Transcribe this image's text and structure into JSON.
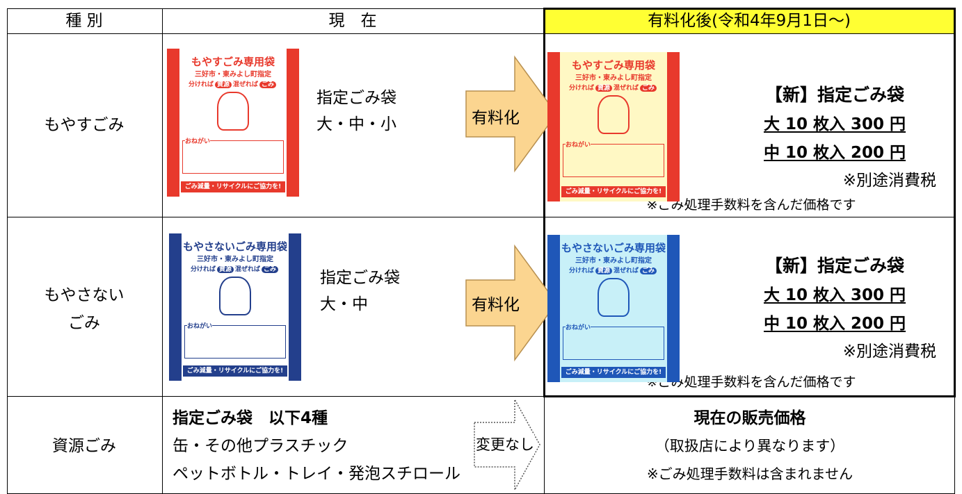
{
  "header": [
    "種 別",
    "現　在",
    "有料化後(令和4年9月1日～)"
  ],
  "rows": [
    {
      "category": [
        "もやすごみ"
      ],
      "current": {
        "bag": {
          "title": "もやすごみ専用袋",
          "subtitle": "三好市・東みよし町指定",
          "slogan": [
            "分ければ",
            "資源",
            "混ぜれば",
            "ごみ"
          ],
          "note": "おねがい",
          "footer": "ごみ減量・リサイクルにご協力を!"
        },
        "lines": [
          "指定ごみ袋",
          "大・中・小"
        ]
      },
      "arrow": "有料化",
      "after": {
        "bag": {
          "title": "もやすごみ専用袋",
          "subtitle": "三好市・東みよし町指定",
          "slogan": [
            "分ければ",
            "資源",
            "混ぜれば",
            "ごみ"
          ],
          "note": "おねがい",
          "footer": "ごみ減量・リサイクルにご協力を!"
        },
        "heading": "【新】指定ごみ袋",
        "prices": [
          "大 10 枚入 300 円",
          "中 10 枚入 200 円"
        ],
        "tax": "※別途消費税",
        "footnote": "※ごみ処理手数料を含んだ価格です"
      }
    },
    {
      "category": [
        "もやさない",
        "ごみ"
      ],
      "current": {
        "bag": {
          "title": "もやさないごみ専用袋",
          "subtitle": "三好市・東みよし町指定",
          "slogan": [
            "分ければ",
            "資源",
            "混ぜれば",
            "ごみ"
          ],
          "note": "おねがい",
          "footer": "ごみ減量・リサイクルにご協力を!"
        },
        "lines": [
          "指定ごみ袋",
          "大・中"
        ]
      },
      "arrow": "有料化",
      "after": {
        "bag": {
          "title": "もやさないごみ専用袋",
          "subtitle": "三好市・東みよし町指定",
          "slogan": [
            "分ければ",
            "資源",
            "混ぜれば",
            "ごみ"
          ],
          "note": "おねがい",
          "footer": "ごみ減量・リサイクルにご協力を!"
        },
        "heading": "【新】指定ごみ袋",
        "prices": [
          "大 10 枚入 300 円",
          "中 10 枚入 200 円"
        ],
        "tax": "※別途消費税",
        "footnote": "※ごみ処理手数料を含んだ価格です"
      }
    },
    {
      "category": [
        "資源ごみ"
      ],
      "current": {
        "lines": [
          "指定ごみ袋　以下4種",
          "缶・その他プラスチック",
          "ペットボトル・トレイ・発泡スチロール"
        ]
      },
      "arrow": "変更なし",
      "after": {
        "heading": "現在の販売価格",
        "lines": [
          "（取扱店により異なります）",
          "※ごみ処理手数料は含まれません"
        ]
      }
    }
  ]
}
